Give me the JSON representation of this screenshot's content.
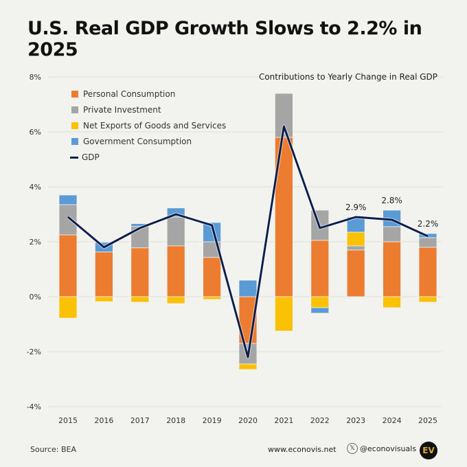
{
  "title": "U.S. Real GDP Growth Slows to 2.2% in 2025",
  "chart_data": {
    "type": "bar",
    "subtitle": "Contributions to Yearly Change in Real GDP",
    "categories": [
      "2015",
      "2016",
      "2017",
      "2018",
      "2019",
      "2020",
      "2021",
      "2022",
      "2023",
      "2024",
      "2025"
    ],
    "ylim": [
      -4,
      8
    ],
    "yticks": [
      "8%",
      "6%",
      "4%",
      "2%",
      "0%",
      "-2%",
      "-4%"
    ],
    "ytick_values": [
      8,
      6,
      4,
      2,
      0,
      -2,
      -4
    ],
    "grid": true,
    "legend_placement": "top-left",
    "series": [
      {
        "name": "Personal Consumption",
        "color": "#ec7c30",
        "values": [
          2.25,
          1.63,
          1.78,
          1.85,
          1.43,
          -1.7,
          5.8,
          2.05,
          1.7,
          2.0,
          1.8
        ]
      },
      {
        "name": "Private Investment",
        "color": "#a5a5a5",
        "values": [
          1.1,
          0,
          0.78,
          1.05,
          0.57,
          -0.75,
          1.6,
          1.1,
          0.15,
          0.55,
          0.35
        ]
      },
      {
        "name": "Net Exports of Goods and Services",
        "color": "#fbc104",
        "values": [
          -0.78,
          -0.18,
          -0.2,
          -0.25,
          -0.1,
          -0.2,
          -1.25,
          -0.4,
          0.5,
          -0.4,
          -0.2
        ]
      },
      {
        "name": "Government Consumption",
        "color": "#5b9bd5",
        "values": [
          0.35,
          0.35,
          0.1,
          0.33,
          0.7,
          0.6,
          0,
          -0.2,
          0.55,
          0.6,
          0.15
        ]
      }
    ],
    "line": {
      "name": "GDP",
      "color": "#0d1f4e",
      "values": [
        2.9,
        1.8,
        2.5,
        3.0,
        2.6,
        -2.2,
        6.2,
        2.5,
        2.9,
        2.8,
        2.2
      ]
    },
    "annotations": [
      {
        "category": "2023",
        "text": "2.9%"
      },
      {
        "category": "2024",
        "text": "2.8%"
      },
      {
        "category": "2025",
        "text": "2.2%"
      }
    ]
  },
  "footer": {
    "source": "Source: BEA",
    "website": "www.econovis.net",
    "x_handle": "@econovisuals",
    "x_icon": "x-logo-icon",
    "logo_text": "EV"
  }
}
